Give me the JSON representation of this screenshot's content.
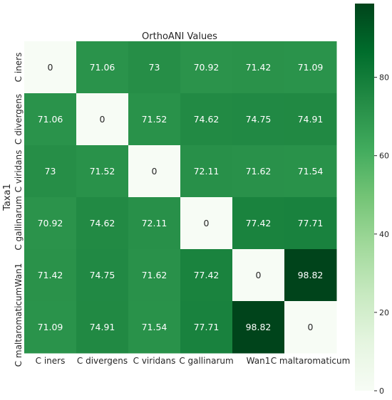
{
  "chart_data": {
    "type": "heatmap",
    "title": "OrthoANI Values",
    "xlabel": "",
    "ylabel": "Taxa1",
    "x_categories": [
      "C iners",
      "C divergens",
      "C viridans",
      "C gallinarum",
      "Wan1",
      "C maltaromaticum"
    ],
    "y_categories": [
      "C iners",
      "C divergens",
      "C viridans",
      "C gallinarum",
      "Wan1",
      "C maltaromaticum"
    ],
    "values": [
      [
        0,
        71.06,
        73,
        70.92,
        71.42,
        71.09
      ],
      [
        71.06,
        0,
        71.52,
        74.62,
        74.75,
        74.91
      ],
      [
        73,
        71.52,
        0,
        72.11,
        71.62,
        71.54
      ],
      [
        70.92,
        74.62,
        72.11,
        0,
        77.42,
        77.71
      ],
      [
        71.42,
        74.75,
        71.62,
        77.42,
        0,
        98.82
      ],
      [
        71.09,
        74.91,
        71.54,
        77.71,
        98.82,
        0
      ]
    ],
    "colorscale": "Greens",
    "vmin": 0,
    "vmax": 98.82,
    "colorbar_ticks": [
      0,
      20,
      40,
      60,
      80
    ],
    "annotations": true,
    "grid": false
  }
}
